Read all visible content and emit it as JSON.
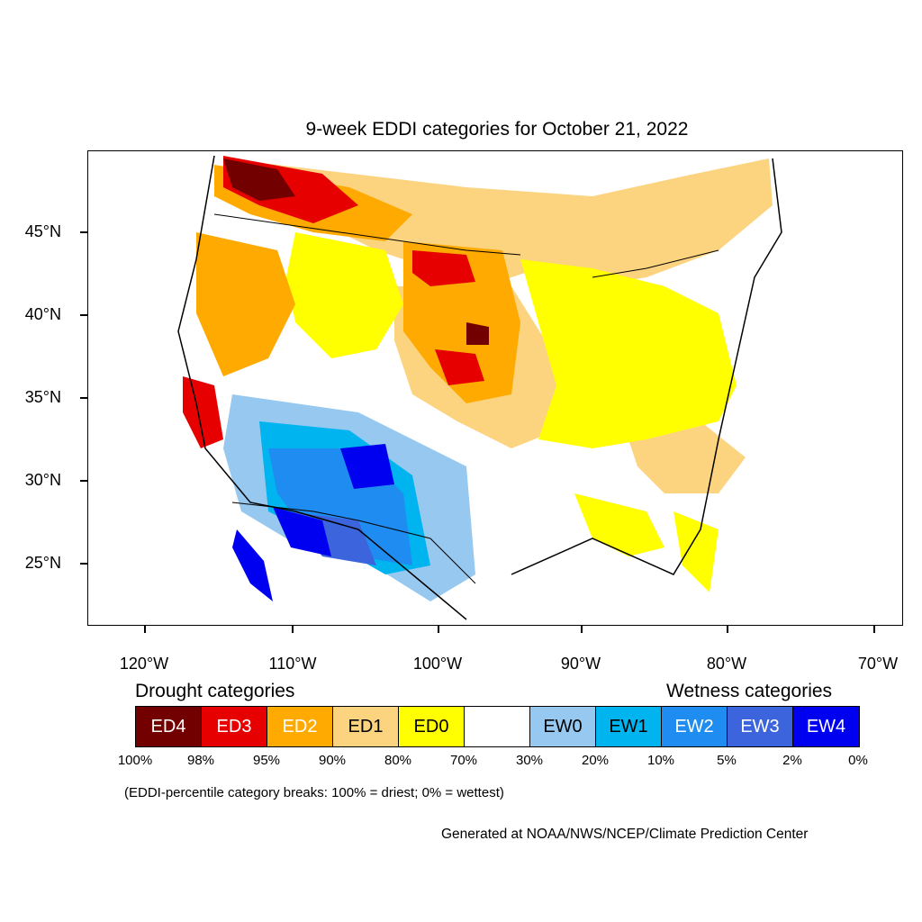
{
  "title": "9-week EDDI categories for October 21, 2022",
  "latitude_labels": [
    "45°N",
    "40°N",
    "35°N",
    "30°N",
    "25°N"
  ],
  "longitude_labels": [
    "120°W",
    "110°W",
    "100°W",
    "90°W",
    "80°W",
    "70°W"
  ],
  "legend": {
    "drought_heading": "Drought categories",
    "wetness_heading": "Wetness categories",
    "categories": [
      {
        "label": "ED4",
        "color": "#730000",
        "text_color": "#ffffff"
      },
      {
        "label": "ED3",
        "color": "#e60000",
        "text_color": "#ffffff"
      },
      {
        "label": "ED2",
        "color": "#ffaa00",
        "text_color": "#ffffff"
      },
      {
        "label": "ED1",
        "color": "#fcd37f",
        "text_color": "#000000"
      },
      {
        "label": "ED0",
        "color": "#ffff00",
        "text_color": "#000000"
      },
      {
        "label": "",
        "color": "#ffffff",
        "text_color": "#000000"
      },
      {
        "label": "EW0",
        "color": "#96c8f0",
        "text_color": "#000000"
      },
      {
        "label": "EW1",
        "color": "#00b4f0",
        "text_color": "#000000"
      },
      {
        "label": "EW2",
        "color": "#1e8cf0",
        "text_color": "#ffffff"
      },
      {
        "label": "EW3",
        "color": "#3c64dc",
        "text_color": "#ffffff"
      },
      {
        "label": "EW4",
        "color": "#0000f0",
        "text_color": "#ffffff"
      }
    ],
    "breaks": [
      "100%",
      "98%",
      "95%",
      "90%",
      "80%",
      "70%",
      "30%",
      "20%",
      "10%",
      "5%",
      "2%",
      "0%"
    ]
  },
  "note": "(EDDI-percentile category breaks: 100% = driest; 0% = wettest)",
  "credit": "Generated at NOAA/NWS/NCEP/Climate Prediction Center"
}
